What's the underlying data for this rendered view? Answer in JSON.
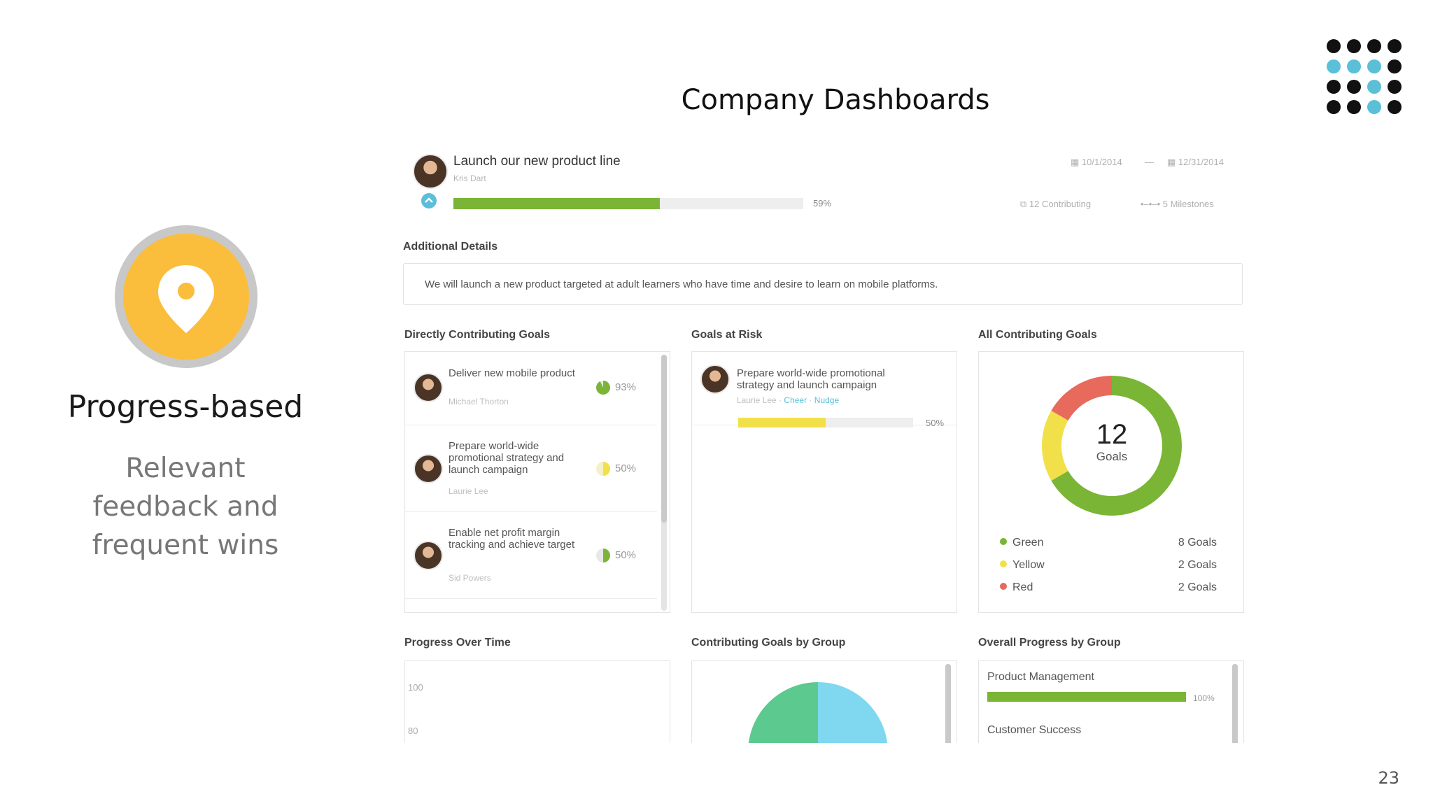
{
  "slide": {
    "title": "Company Dashboards",
    "page_number": "23",
    "dot_grid_colors": [
      "#111111",
      "#111111",
      "#111111",
      "#111111",
      "#5bbfd8",
      "#5bbfd8",
      "#5bbfd8",
      "#111111",
      "#111111",
      "#111111",
      "#5bbfd8",
      "#111111",
      "#111111",
      "#111111",
      "#5bbfd8",
      "#111111"
    ]
  },
  "promo": {
    "icon": "map-pin-icon",
    "title": "Progress-based",
    "subtitle_lines": [
      "Relevant",
      "feedback and",
      "frequent wins"
    ]
  },
  "goal": {
    "title": "Launch our new product line",
    "owner": "Kris Dart",
    "progress": 59,
    "progress_label": "59%",
    "start_date": "10/1/2014",
    "date_sep": "—",
    "end_date": "12/31/2014",
    "contributing": "12 Contributing",
    "milestones": "5 Milestones"
  },
  "details": {
    "heading": "Additional Details",
    "text": "We will launch a new product targeted at adult learners who have time and desire to learn on mobile platforms."
  },
  "direct_goals": {
    "heading": "Directly Contributing Goals",
    "items": [
      {
        "title": "Deliver new mobile product",
        "owner": "Michael Thorton",
        "progress": 93,
        "pct": "93%",
        "color": "#7ab536"
      },
      {
        "title": "Prepare world-wide promotional strategy and launch campaign",
        "owner": "Laurie Lee",
        "progress": 50,
        "pct": "50%",
        "color": "#f2e04a"
      },
      {
        "title": "Enable net profit margin tracking and achieve target",
        "owner": "Sid Powers",
        "progress": 50,
        "pct": "50%",
        "color": "#7ab536"
      }
    ]
  },
  "at_risk": {
    "heading": "Goals at Risk",
    "item": {
      "title": "Prepare world-wide promotional strategy and launch campaign",
      "owner": "Laurie Lee",
      "cheer": "Cheer",
      "nudge": "Nudge",
      "progress": 50,
      "pct": "50%"
    }
  },
  "all_goals": {
    "heading": "All Contributing Goals",
    "total": "12",
    "total_label": "Goals",
    "legend": [
      {
        "name": "Green",
        "count": "8 Goals",
        "value": 8,
        "color": "#7ab536"
      },
      {
        "name": "Yellow",
        "count": "2 Goals",
        "value": 2,
        "color": "#f2e04a"
      },
      {
        "name": "Red",
        "count": "2 Goals",
        "value": 2,
        "color": "#e86a5c"
      }
    ]
  },
  "progress_over_time": {
    "heading": "Progress Over Time",
    "y_ticks": [
      "100",
      "80"
    ]
  },
  "group_goals": {
    "heading": "Contributing Goals by Group",
    "slice_colors": [
      "#5cc98f",
      "#7fd8f0"
    ]
  },
  "overall_group": {
    "heading": "Overall Progress by Group",
    "groups": [
      {
        "name": "Product Management",
        "progress": 100,
        "pct": "100%"
      },
      {
        "name": "Customer Success"
      }
    ]
  }
}
